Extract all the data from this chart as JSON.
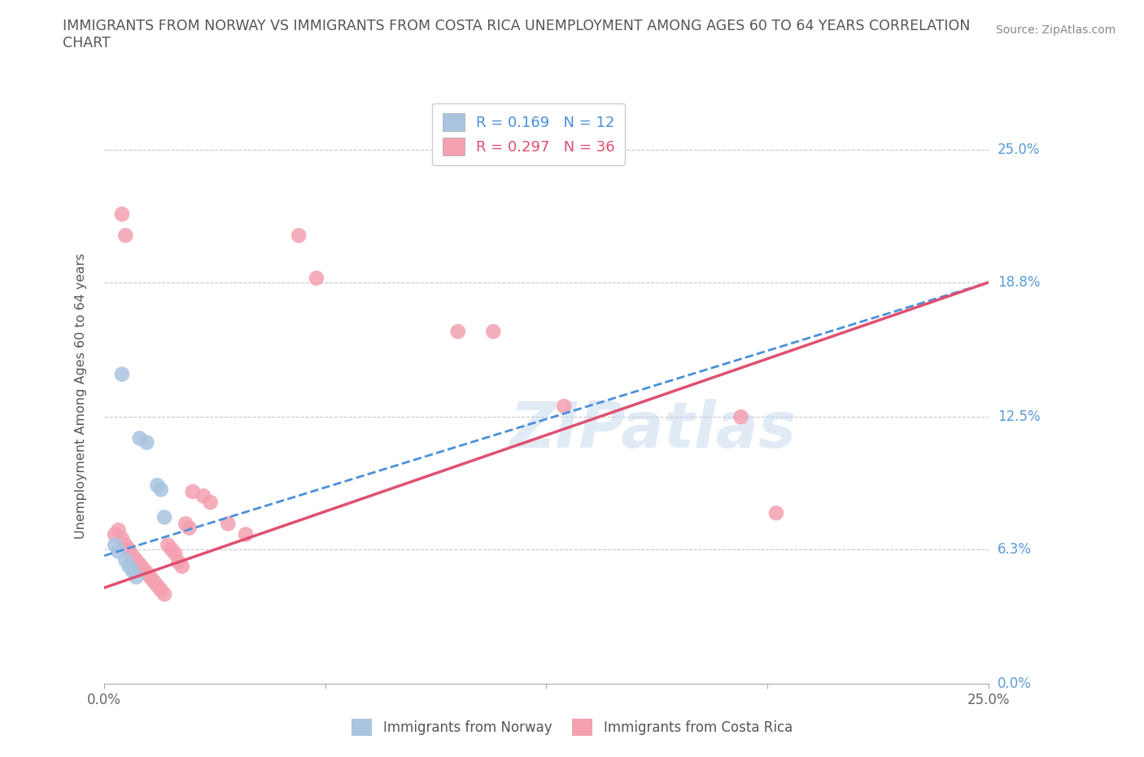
{
  "title": "IMMIGRANTS FROM NORWAY VS IMMIGRANTS FROM COSTA RICA UNEMPLOYMENT AMONG AGES 60 TO 64 YEARS CORRELATION\nCHART",
  "source": "Source: ZipAtlas.com",
  "ylabel": "Unemployment Among Ages 60 to 64 years",
  "xlim": [
    0.0,
    0.25
  ],
  "ylim": [
    0.0,
    0.27
  ],
  "yticks": [
    0.0,
    0.063,
    0.125,
    0.188,
    0.25
  ],
  "ytick_labels": [
    "0.0%",
    "6.3%",
    "12.5%",
    "18.8%",
    "25.0%"
  ],
  "xticks": [
    0.0,
    0.0625,
    0.125,
    0.1875,
    0.25
  ],
  "xtick_labels": [
    "0.0%",
    "",
    "",
    "",
    "25.0%"
  ],
  "norway_x": [
    0.005,
    0.01,
    0.012,
    0.015,
    0.016,
    0.017,
    0.003,
    0.004,
    0.006,
    0.007,
    0.008,
    0.009
  ],
  "norway_y": [
    0.145,
    0.115,
    0.113,
    0.093,
    0.091,
    0.078,
    0.065,
    0.062,
    0.058,
    0.055,
    0.053,
    0.05
  ],
  "costa_rica_x": [
    0.003,
    0.004,
    0.005,
    0.006,
    0.007,
    0.008,
    0.009,
    0.01,
    0.011,
    0.012,
    0.013,
    0.014,
    0.015,
    0.016,
    0.017,
    0.018,
    0.019,
    0.02,
    0.021,
    0.022,
    0.023,
    0.024,
    0.025,
    0.028,
    0.03,
    0.035,
    0.04,
    0.055,
    0.06,
    0.1,
    0.11,
    0.13,
    0.18,
    0.19,
    0.005,
    0.006
  ],
  "costa_rica_y": [
    0.07,
    0.072,
    0.068,
    0.065,
    0.063,
    0.06,
    0.058,
    0.056,
    0.054,
    0.052,
    0.05,
    0.048,
    0.046,
    0.044,
    0.042,
    0.065,
    0.063,
    0.061,
    0.057,
    0.055,
    0.075,
    0.073,
    0.09,
    0.088,
    0.085,
    0.075,
    0.07,
    0.21,
    0.19,
    0.165,
    0.165,
    0.13,
    0.125,
    0.08,
    0.22,
    0.21
  ],
  "norway_color": "#a8c4e0",
  "costa_rica_color": "#f4a0b0",
  "norway_line_color": "#4a90d9",
  "costa_rica_line_color": "#e05070",
  "norway_R": 0.169,
  "norway_N": 12,
  "costa_rica_R": 0.297,
  "costa_rica_N": 36,
  "grid_color": "#c8c8c8",
  "right_label_color": "#5b9bd5",
  "watermark": "ZIPatlas",
  "legend_norway_label": "Immigrants from Norway",
  "legend_cr_label": "Immigrants from Costa Rica",
  "norway_line_x": [
    0.0,
    0.25
  ],
  "norway_line_y": [
    0.06,
    0.188
  ],
  "cr_line_x": [
    0.0,
    0.25
  ],
  "cr_line_y": [
    0.045,
    0.188
  ]
}
